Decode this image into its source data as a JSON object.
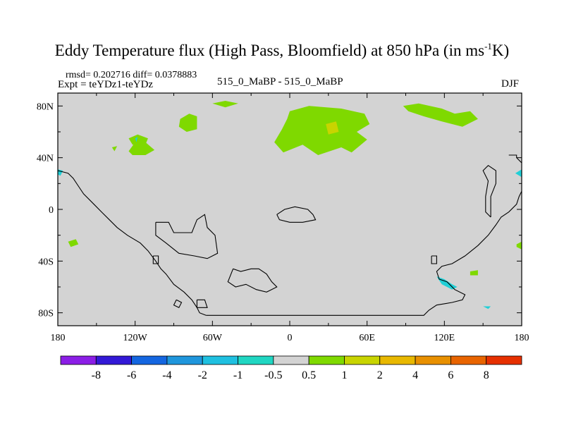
{
  "title_main": "Eddy Temperature flux (High Pass, Bloomfield) at 850 hPa (in ms",
  "title_sup": "-1",
  "title_end": "K)",
  "stats": "rmsd= 0.202716 diff= 0.0378883",
  "expt": "Expt = teYDz1-teYDz",
  "center_label": "515_0_MaBP - 515_0_MaBP",
  "season": "DJF",
  "colors": {
    "background_field": "#d3d3d3",
    "positive_fill": "#7fd900",
    "positive_fill_2": "#c8d400",
    "negative_fill": "#20cfd6",
    "coast": "#000000"
  },
  "chart_data": {
    "type": "heatmap",
    "projection": "cylindrical equidistant",
    "xlim": [
      -180,
      180
    ],
    "ylim": [
      -90,
      90
    ],
    "x_ticks": [
      {
        "value": -180,
        "label": "180"
      },
      {
        "value": -120,
        "label": "120W"
      },
      {
        "value": -60,
        "label": "60W"
      },
      {
        "value": 0,
        "label": "0"
      },
      {
        "value": 60,
        "label": "60E"
      },
      {
        "value": 120,
        "label": "120E"
      },
      {
        "value": 180,
        "label": "180"
      }
    ],
    "y_ticks": [
      {
        "value": 80,
        "label": "80N"
      },
      {
        "value": 40,
        "label": "40N"
      },
      {
        "value": 0,
        "label": "0"
      },
      {
        "value": -40,
        "label": "40S"
      },
      {
        "value": -80,
        "label": "80S"
      }
    ],
    "colorbar": {
      "colors": [
        "#8b1ee6",
        "#3219d6",
        "#1466e0",
        "#1f96dc",
        "#1fc0e0",
        "#20d6c2",
        "#d3d3d3",
        "#7fd900",
        "#c8d400",
        "#e8b800",
        "#e89000",
        "#e86400",
        "#e63000"
      ],
      "labels": [
        "-8",
        "-6",
        "-4",
        "-2",
        "-1",
        "-0.5",
        "0.5",
        "1",
        "2",
        "4",
        "6",
        "8"
      ]
    },
    "regions": [
      {
        "sign": "positive",
        "level": 1,
        "lonlat": [
          [
            -125,
            55
          ],
          [
            -118,
            58
          ],
          [
            -110,
            55
          ],
          [
            -112,
            50
          ],
          [
            -122,
            50
          ]
        ]
      },
      {
        "sign": "positive",
        "level": 1,
        "lonlat": [
          [
            -125,
            45
          ],
          [
            -120,
            52
          ],
          [
            -112,
            52
          ],
          [
            -105,
            46
          ],
          [
            -112,
            42
          ],
          [
            -122,
            42
          ]
        ]
      },
      {
        "sign": "positive",
        "level": 1,
        "lonlat": [
          [
            -138,
            48
          ],
          [
            -134,
            49
          ],
          [
            -136,
            45
          ]
        ]
      },
      {
        "sign": "positive",
        "level": 1,
        "lonlat": [
          [
            -60,
            82
          ],
          [
            -50,
            84
          ],
          [
            -40,
            82
          ],
          [
            -50,
            79
          ]
        ]
      },
      {
        "sign": "positive",
        "level": 1,
        "lonlat": [
          [
            -85,
            70
          ],
          [
            -78,
            74
          ],
          [
            -72,
            72
          ],
          [
            -72,
            62
          ],
          [
            -80,
            60
          ],
          [
            -86,
            64
          ]
        ]
      },
      {
        "sign": "positive",
        "level": 1,
        "lonlat": [
          [
            0,
            76
          ],
          [
            15,
            80
          ],
          [
            40,
            78
          ],
          [
            58,
            74
          ],
          [
            62,
            66
          ],
          [
            52,
            60
          ],
          [
            60,
            54
          ],
          [
            48,
            44
          ],
          [
            40,
            48
          ],
          [
            22,
            42
          ],
          [
            10,
            50
          ],
          [
            -5,
            44
          ],
          [
            -12,
            52
          ],
          [
            -6,
            62
          ],
          [
            -2,
            70
          ]
        ]
      },
      {
        "sign": "positive",
        "level": 1,
        "lonlat": [
          [
            88,
            80
          ],
          [
            100,
            82
          ],
          [
            118,
            78
          ],
          [
            128,
            74
          ],
          [
            140,
            76
          ],
          [
            146,
            70
          ],
          [
            134,
            64
          ],
          [
            118,
            68
          ],
          [
            104,
            72
          ],
          [
            92,
            76
          ]
        ]
      },
      {
        "sign": "positive",
        "level": 1,
        "lonlat": [
          [
            -172,
            -25
          ],
          [
            -166,
            -23
          ],
          [
            -164,
            -27
          ],
          [
            -170,
            -29
          ]
        ]
      },
      {
        "sign": "positive",
        "level": 1,
        "lonlat": [
          [
            176,
            -27
          ],
          [
            180,
            -25
          ],
          [
            180,
            -31
          ],
          [
            176,
            -29
          ]
        ]
      },
      {
        "sign": "positive",
        "level": 1,
        "lonlat": [
          [
            140,
            -48
          ],
          [
            146,
            -47
          ],
          [
            146,
            -51
          ],
          [
            140,
            -51
          ]
        ]
      },
      {
        "sign": "positive",
        "level": 2,
        "lonlat": [
          [
            28,
            66
          ],
          [
            36,
            68
          ],
          [
            38,
            60
          ],
          [
            30,
            58
          ]
        ]
      },
      {
        "sign": "negative",
        "level": -1,
        "lonlat": [
          [
            -180,
            31
          ],
          [
            -176,
            30
          ],
          [
            -178,
            26
          ],
          [
            -180,
            27
          ]
        ]
      },
      {
        "sign": "negative",
        "level": -1,
        "lonlat": [
          [
            175,
            28
          ],
          [
            180,
            31
          ],
          [
            180,
            25
          ]
        ]
      },
      {
        "sign": "negative",
        "level": -1,
        "lonlat": [
          [
            -120,
            55
          ],
          [
            -118,
            56
          ],
          [
            -119,
            52
          ]
        ]
      },
      {
        "sign": "negative",
        "level": -1,
        "lonlat": [
          [
            114,
            -52
          ],
          [
            120,
            -54
          ],
          [
            126,
            -58
          ],
          [
            130,
            -60
          ],
          [
            126,
            -62
          ],
          [
            118,
            -58
          ]
        ]
      },
      {
        "sign": "negative",
        "level": -1,
        "lonlat": [
          [
            150,
            -75
          ],
          [
            156,
            -75
          ],
          [
            154,
            -77
          ]
        ]
      }
    ],
    "coastlines": [
      {
        "name": "west-americas",
        "lonlat": [
          [
            -180,
            30
          ],
          [
            -172,
            28
          ],
          [
            -168,
            24
          ],
          [
            -164,
            18
          ],
          [
            -160,
            12
          ],
          [
            -152,
            4
          ],
          [
            -146,
            -2
          ],
          [
            -140,
            -8
          ],
          [
            -134,
            -14
          ],
          [
            -126,
            -20
          ],
          [
            -116,
            -26
          ],
          [
            -110,
            -32
          ],
          [
            -104,
            -40
          ],
          [
            -100,
            -46
          ],
          [
            -96,
            -50
          ],
          [
            -90,
            -58
          ],
          [
            -82,
            -64
          ],
          [
            -76,
            -70
          ],
          [
            -72,
            -76
          ],
          [
            -70,
            -80
          ],
          [
            -65,
            -82
          ]
        ]
      },
      {
        "name": "antarctic-coast",
        "lonlat": [
          [
            -65,
            -82
          ],
          [
            0,
            -82
          ],
          [
            60,
            -82
          ],
          [
            104,
            -82
          ],
          [
            108,
            -78
          ],
          [
            114,
            -74
          ],
          [
            126,
            -72
          ],
          [
            134,
            -70
          ],
          [
            136,
            -66
          ],
          [
            128,
            -62
          ],
          [
            122,
            -56
          ],
          [
            116,
            -54
          ],
          [
            114,
            -48
          ],
          [
            118,
            -44
          ],
          [
            126,
            -42
          ],
          [
            136,
            -36
          ],
          [
            146,
            -28
          ],
          [
            154,
            -20
          ],
          [
            160,
            -12
          ],
          [
            164,
            -6
          ],
          [
            170,
            -2
          ],
          [
            176,
            4
          ],
          [
            178,
            10
          ],
          [
            180,
            14
          ]
        ]
      },
      {
        "name": "south-island-a",
        "lonlat": [
          [
            -106,
            -36
          ],
          [
            -102,
            -36
          ],
          [
            -102,
            -42
          ],
          [
            -106,
            -42
          ],
          [
            -106,
            -36
          ]
        ]
      },
      {
        "name": "south-island-b",
        "lonlat": [
          [
            -88,
            -70
          ],
          [
            -84,
            -72
          ],
          [
            -86,
            -76
          ],
          [
            -90,
            -74
          ],
          [
            -88,
            -70
          ]
        ]
      },
      {
        "name": "south-island-c",
        "lonlat": [
          [
            -72,
            -70
          ],
          [
            -66,
            -70
          ],
          [
            -64,
            -76
          ],
          [
            -72,
            -76
          ],
          [
            -72,
            -70
          ]
        ]
      },
      {
        "name": "east-coast-north",
        "lonlat": [
          [
            156,
            -6
          ],
          [
            152,
            -2
          ],
          [
            152,
            10
          ],
          [
            154,
            22
          ],
          [
            150,
            30
          ],
          [
            154,
            34
          ],
          [
            160,
            30
          ],
          [
            160,
            20
          ],
          [
            156,
            10
          ],
          [
            156,
            -6
          ]
        ]
      },
      {
        "name": "east-coast-far",
        "lonlat": [
          [
            170,
            42
          ],
          [
            176,
            42
          ],
          [
            176,
            40
          ],
          [
            180,
            36
          ]
        ]
      },
      {
        "name": "central-ring-1",
        "lonlat": [
          [
            -104,
            -10
          ],
          [
            -94,
            -10
          ],
          [
            -90,
            -18
          ],
          [
            -76,
            -18
          ],
          [
            -72,
            -8
          ],
          [
            -66,
            -4
          ],
          [
            -64,
            -14
          ],
          [
            -58,
            -20
          ],
          [
            -56,
            -34
          ],
          [
            -64,
            -38
          ],
          [
            -74,
            -36
          ],
          [
            -86,
            -34
          ],
          [
            -96,
            -26
          ],
          [
            -104,
            -20
          ],
          [
            -104,
            -10
          ]
        ]
      },
      {
        "name": "central-ring-2",
        "lonlat": [
          [
            -44,
            -46
          ],
          [
            -38,
            -48
          ],
          [
            -30,
            -46
          ],
          [
            -24,
            -46
          ],
          [
            -18,
            -50
          ],
          [
            -14,
            -56
          ],
          [
            -10,
            -60
          ],
          [
            -18,
            -64
          ],
          [
            -26,
            -62
          ],
          [
            -34,
            -58
          ],
          [
            -42,
            -60
          ],
          [
            -48,
            -56
          ],
          [
            -44,
            -46
          ]
        ]
      },
      {
        "name": "equator-ring",
        "lonlat": [
          [
            -10,
            -4
          ],
          [
            -4,
            0
          ],
          [
            4,
            2
          ],
          [
            14,
            0
          ],
          [
            18,
            -4
          ],
          [
            20,
            -8
          ],
          [
            10,
            -10
          ],
          [
            0,
            -10
          ],
          [
            -8,
            -8
          ],
          [
            -10,
            -4
          ]
        ]
      },
      {
        "name": "south-east-island",
        "lonlat": [
          [
            110,
            -36
          ],
          [
            114,
            -36
          ],
          [
            114,
            -42
          ],
          [
            110,
            -42
          ],
          [
            110,
            -36
          ]
        ]
      }
    ]
  }
}
